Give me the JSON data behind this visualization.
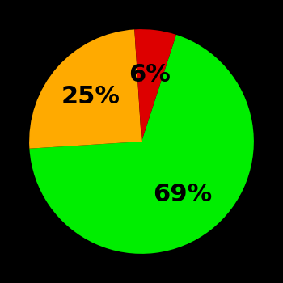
{
  "slices": [
    69,
    25,
    6
  ],
  "colors": [
    "#00ee00",
    "#ffaa00",
    "#dd0000"
  ],
  "labels": [
    "69%",
    "25%",
    "6%"
  ],
  "background_color": "#000000",
  "text_color": "#000000",
  "label_fontsize": 22,
  "label_fontweight": "bold",
  "startangle": 72,
  "figsize": [
    3.5,
    3.5
  ],
  "dpi": 100
}
